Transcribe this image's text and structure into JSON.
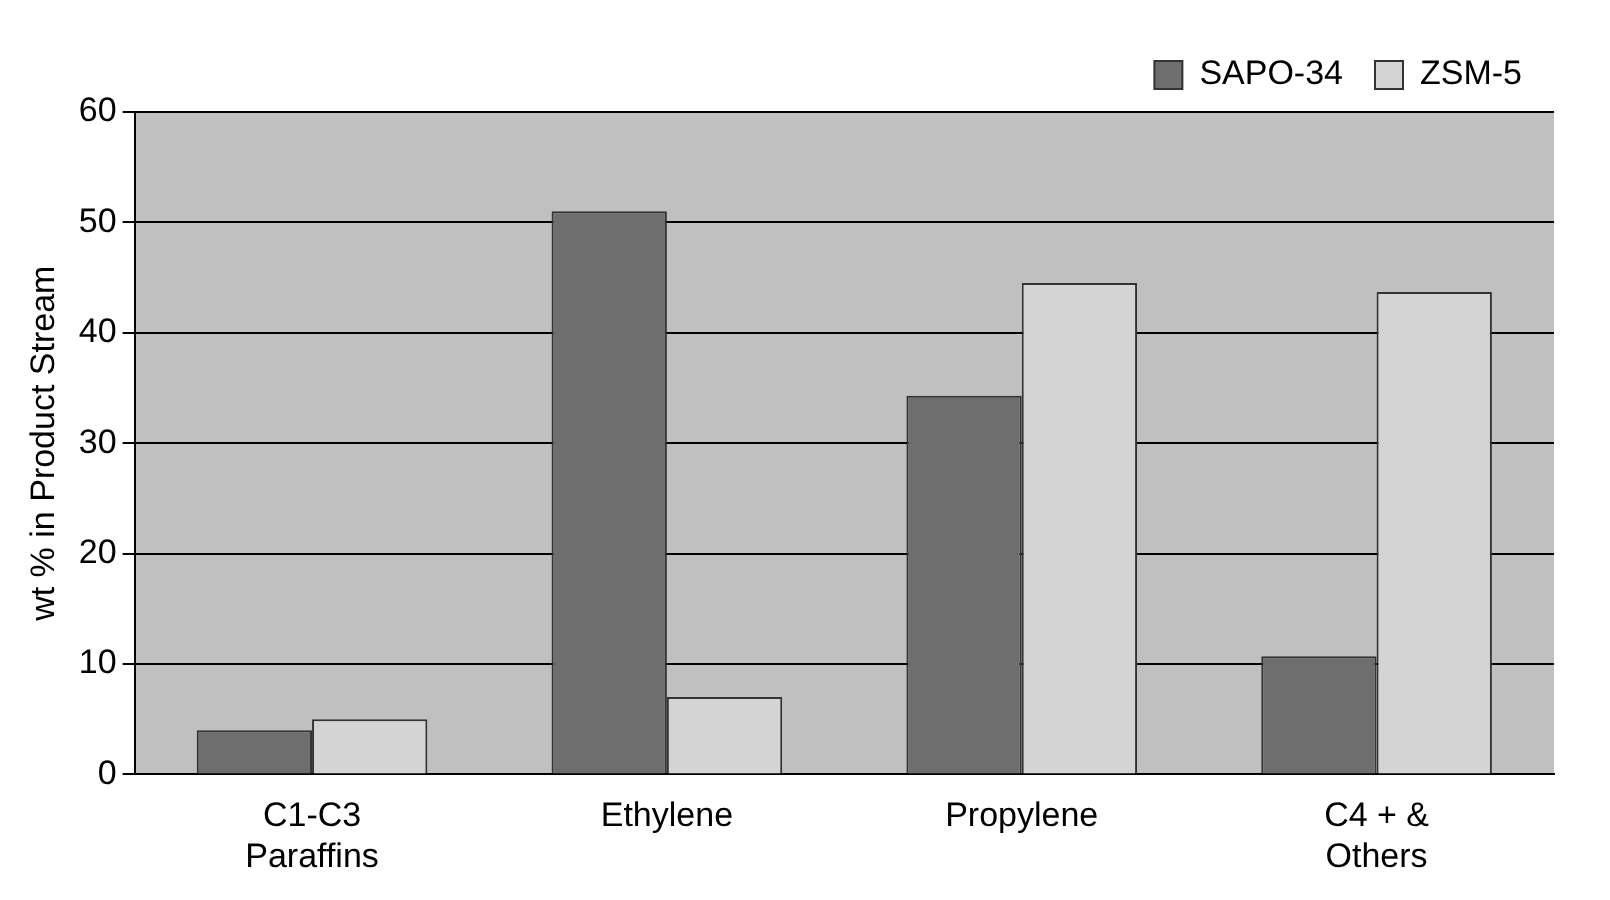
{
  "chart_data": {
    "type": "bar",
    "ylabel": "wt % in Product Stream",
    "categories": [
      "C1-C3 Paraffins",
      "Ethylene",
      "Propylene",
      "C4 + & Others"
    ],
    "series": [
      {
        "name": "SAPO-34",
        "color": "#6e6e6e",
        "values": [
          4.0,
          51.0,
          34.3,
          10.7
        ]
      },
      {
        "name": "ZSM-5",
        "color": "#d4d4d4",
        "values": [
          5.0,
          7.0,
          44.5,
          43.7
        ]
      }
    ],
    "ylim": [
      0,
      60
    ],
    "yticks": [
      0,
      10,
      20,
      30,
      40,
      50,
      60
    ],
    "grid": "y",
    "legend": "top right"
  }
}
